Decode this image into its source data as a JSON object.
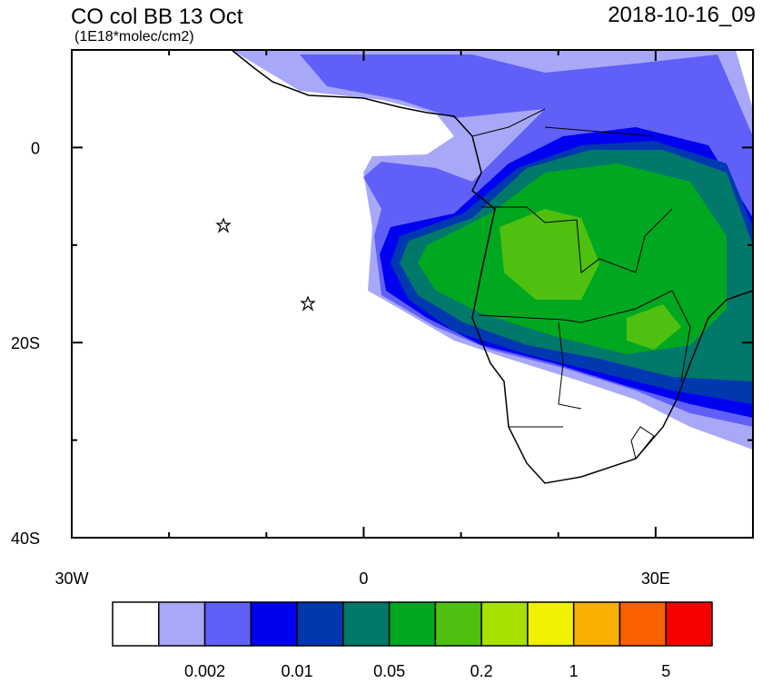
{
  "map": {
    "title": "CO col BB 13 Oct",
    "units": "(1E18*molec/cm2)",
    "timestamp": "2018-10-16_09",
    "lonlim": [
      -30,
      40
    ],
    "latlim": [
      -40,
      10
    ],
    "lon_ticks": [
      {
        "value": -30,
        "label": "30W"
      },
      0,
      {
        "value": 30,
        "label": "30E"
      }
    ],
    "lat_ticks": [
      0,
      {
        "value": -20,
        "label": "20S"
      },
      {
        "value": -40,
        "label": "40S"
      }
    ],
    "lon_minor_ticks": [
      -20,
      -10,
      10,
      20,
      40
    ],
    "lat_minor_ticks": [
      10,
      -10,
      -30
    ],
    "colorbar": {
      "colors": [
        "#ffffff",
        "#a8a8f8",
        "#6060f8",
        "#0000f0",
        "#0038b0",
        "#00786a",
        "#00a820",
        "#50c010",
        "#a8e000",
        "#f0f000",
        "#f8b000",
        "#f86000",
        "#f80000"
      ],
      "labels": [
        0.002,
        0.01,
        0.05,
        0.2,
        1,
        5
      ]
    }
  }
}
